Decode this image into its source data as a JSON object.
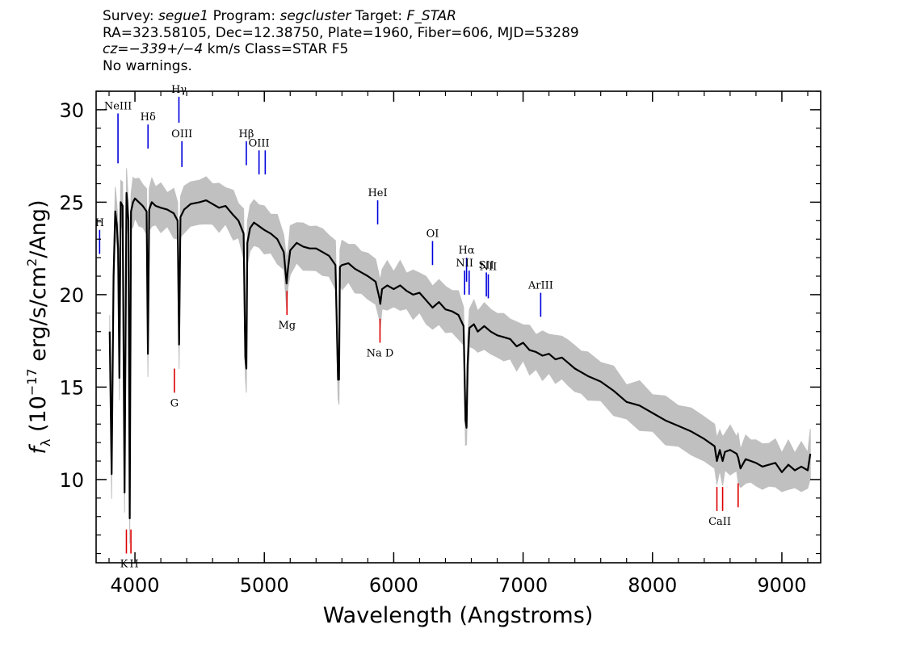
{
  "header": {
    "line1": {
      "survey_label": "Survey:",
      "survey": "segue1",
      "program_label": "Program:",
      "program": "segcluster",
      "target_label": "Target:",
      "target": "F_STAR"
    },
    "line2": "RA=323.58105, Dec=12.38750, Plate=1960, Fiber=606, MJD=53289",
    "line3": {
      "cz": "cz=−339+/−4",
      "rest": "km/s Class=STAR F5"
    },
    "line4": "No warnings."
  },
  "chart_data": {
    "type": "line",
    "xlabel": "Wavelength (Angstroms)",
    "ylabel": "f_λ (10^-17 erg/s/cm^2/Ang)",
    "xlim": [
      3700,
      9300
    ],
    "ylim": [
      5.5,
      31
    ],
    "x_ticks": [
      4000,
      5000,
      6000,
      7000,
      8000,
      9000
    ],
    "y_ticks": [
      10,
      15,
      20,
      25,
      30
    ],
    "grid": false,
    "series": [
      {
        "name": "",
        "color": "#000000",
        "x": [
          3805,
          3820,
          3835,
          3848,
          3860,
          3870,
          3880,
          3890,
          3905,
          3920,
          3935,
          3950,
          3960,
          3970,
          3985,
          4000,
          4030,
          4060,
          4090,
          4100,
          4110,
          4130,
          4160,
          4200,
          4250,
          4300,
          4330,
          4341,
          4352,
          4380,
          4430,
          4500,
          4550,
          4600,
          4650,
          4700,
          4760,
          4800,
          4840,
          4853,
          4861,
          4869,
          4890,
          4920,
          4960,
          5000,
          5050,
          5100,
          5150,
          5172,
          5183,
          5200,
          5250,
          5300,
          5350,
          5400,
          5450,
          5500,
          5550,
          5570,
          5577,
          5584,
          5600,
          5650,
          5700,
          5750,
          5800,
          5860,
          5890,
          5896,
          5910,
          5950,
          6000,
          6050,
          6100,
          6150,
          6200,
          6250,
          6300,
          6350,
          6400,
          6450,
          6500,
          6540,
          6555,
          6563,
          6571,
          6585,
          6620,
          6650,
          6700,
          6750,
          6800,
          6850,
          6900,
          6950,
          7000,
          7050,
          7100,
          7150,
          7200,
          7250,
          7300,
          7350,
          7400,
          7450,
          7500,
          7600,
          7700,
          7800,
          7900,
          8000,
          8100,
          8200,
          8300,
          8400,
          8480,
          8498,
          8520,
          8542,
          8560,
          8600,
          8650,
          8662,
          8680,
          8720,
          8760,
          8800,
          8850,
          8900,
          8950,
          9000,
          9050,
          9100,
          9150,
          9200,
          9220
        ],
        "y": [
          18.0,
          10.3,
          21.0,
          24.5,
          23.8,
          22.5,
          15.5,
          25.0,
          24.8,
          9.3,
          25.5,
          24.0,
          7.9,
          24.5,
          25.0,
          25.2,
          25.0,
          24.8,
          24.5,
          16.8,
          24.6,
          25.0,
          24.8,
          24.7,
          24.6,
          24.4,
          24.0,
          17.3,
          24.2,
          24.6,
          24.9,
          25.0,
          25.1,
          24.9,
          24.7,
          24.8,
          24.3,
          24.0,
          23.3,
          16.6,
          16.0,
          22.8,
          23.6,
          23.9,
          23.7,
          23.5,
          23.3,
          23.0,
          22.3,
          20.6,
          21.4,
          22.4,
          22.8,
          22.6,
          22.5,
          22.5,
          22.3,
          22.1,
          21.6,
          15.4,
          15.4,
          21.5,
          21.6,
          21.7,
          21.4,
          21.2,
          21.0,
          20.7,
          19.8,
          19.5,
          20.3,
          20.5,
          20.3,
          20.5,
          20.2,
          20.0,
          20.1,
          19.7,
          19.3,
          19.6,
          19.2,
          19.1,
          18.9,
          18.3,
          13.2,
          12.8,
          16.2,
          18.2,
          18.4,
          18.0,
          18.3,
          18.0,
          17.8,
          17.7,
          17.6,
          17.2,
          17.4,
          17.0,
          16.9,
          16.7,
          16.8,
          16.5,
          16.6,
          16.3,
          16.0,
          15.8,
          15.6,
          15.3,
          14.8,
          14.2,
          14.0,
          13.6,
          13.2,
          12.9,
          12.6,
          12.2,
          11.8,
          11.0,
          11.6,
          11.0,
          11.5,
          11.6,
          11.4,
          11.2,
          10.6,
          11.1,
          11.0,
          10.9,
          10.7,
          10.8,
          10.9,
          10.4,
          10.8,
          10.5,
          10.7,
          10.5,
          11.4
        ]
      }
    ],
    "uncertainty_band_color": "#c0c0c0",
    "emission_lines": [
      {
        "label": "NeIII",
        "x": 3869,
        "y_top": 29.8,
        "y_bottom": 27.1
      },
      {
        "label": "Hδ",
        "x": 4101,
        "y_top": 29.2,
        "y_bottom": 27.9
      },
      {
        "label": "Hγ",
        "x": 4340,
        "y_top": 30.7,
        "y_bottom": 29.3
      },
      {
        "label": "OIII",
        "x": 4363,
        "y_top": 28.3,
        "y_bottom": 26.9
      },
      {
        "label": "Hβ",
        "x": 4861,
        "y_top": 28.3,
        "y_bottom": 27.0
      },
      {
        "label": "OIII",
        "x": 4959,
        "y_top": 27.8,
        "y_bottom": 26.5
      },
      {
        "label": "",
        "x": 5007,
        "y_top": 27.8,
        "y_bottom": 26.5
      },
      {
        "label": "HeI",
        "x": 5876,
        "y_top": 25.1,
        "y_bottom": 23.8
      },
      {
        "label": "OI",
        "x": 6300,
        "y_top": 22.9,
        "y_bottom": 21.6
      },
      {
        "label": "Hα",
        "x": 6563,
        "y_top": 22.0,
        "y_bottom": 20.7
      },
      {
        "label": "NII",
        "x": 6548,
        "y_top": 21.3,
        "y_bottom": 20.0
      },
      {
        "label": "",
        "x": 6583,
        "y_top": 21.3,
        "y_bottom": 20.0
      },
      {
        "label": "SII",
        "x": 6716,
        "y_top": 21.2,
        "y_bottom": 19.9
      },
      {
        "label": "NII",
        "x": 6731,
        "y_top": 21.1,
        "y_bottom": 19.8
      },
      {
        "label": "ArIII",
        "x": 7136,
        "y_top": 20.1,
        "y_bottom": 18.8
      },
      {
        "label": "H",
        "x": 3727,
        "y_top": 23.5,
        "y_bottom": 22.2
      }
    ],
    "absorption_lines": [
      {
        "label": "K",
        "x": 3934,
        "y_top": 7.3,
        "y_bottom": 6.0
      },
      {
        "label": "H",
        "x": 3969,
        "y_top": 7.3,
        "y_bottom": 6.0
      },
      {
        "label": "G",
        "x": 4305,
        "y_top": 16.0,
        "y_bottom": 14.7
      },
      {
        "label": "Mg",
        "x": 5175,
        "y_top": 20.2,
        "y_bottom": 18.9
      },
      {
        "label": "Na  D",
        "x": 5894,
        "y_top": 18.7,
        "y_bottom": 17.4
      },
      {
        "label": "CaII",
        "x": 8498,
        "y_top": 9.6,
        "y_bottom": 8.3
      },
      {
        "label": "",
        "x": 8542,
        "y_top": 9.6,
        "y_bottom": 8.3
      },
      {
        "label": "",
        "x": 8662,
        "y_top": 9.8,
        "y_bottom": 8.5
      }
    ],
    "emission_color": "#0000dd",
    "absorption_color": "#dd0000"
  }
}
